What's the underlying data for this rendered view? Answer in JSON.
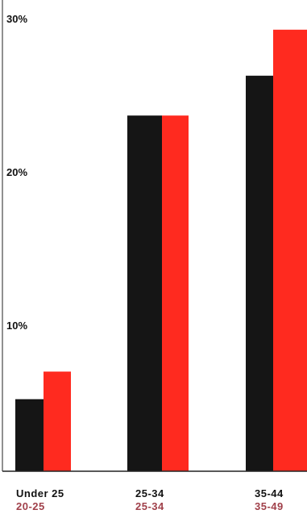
{
  "chart_data": {
    "type": "bar",
    "title": "",
    "xlabel": "",
    "ylabel": "",
    "ylim": [
      0,
      30
    ],
    "yticks": [
      {
        "value": 30,
        "label": "30%"
      },
      {
        "value": 20,
        "label": "20%"
      },
      {
        "value": 10,
        "label": "10%"
      }
    ],
    "categories": [
      {
        "primary": "Under 25",
        "secondary": "20-25"
      },
      {
        "primary": "25-34",
        "secondary": "25-34"
      },
      {
        "primary": "35-44",
        "secondary": "35-49"
      }
    ],
    "series": [
      {
        "color": "#151515",
        "values": [
          4.7,
          23.2,
          25.8
        ]
      },
      {
        "color": "#ff2a1f",
        "values": [
          6.5,
          23.2,
          28.8
        ]
      }
    ],
    "secondary_label_color": "#a0404a",
    "grid": false,
    "legend": "none"
  }
}
